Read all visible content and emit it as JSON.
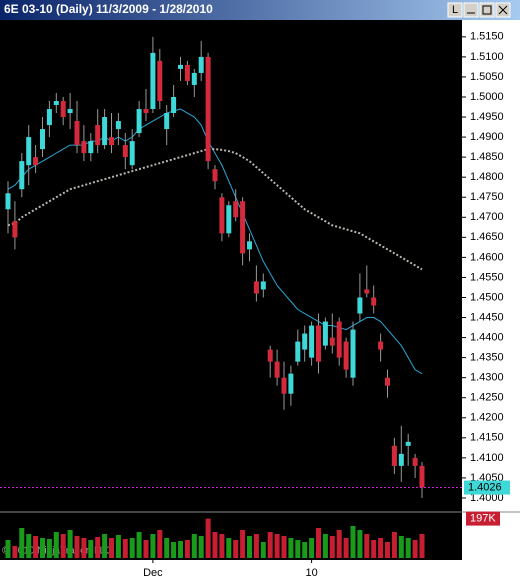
{
  "window_title": "6E 03-10 (Daily)  11/3/2009 - 1/28/2010",
  "window_buttons": [
    "L"
  ],
  "chart_data": {
    "type": "candlestick",
    "categories": [
      null,
      null,
      null,
      null,
      null,
      null,
      null,
      null,
      null,
      null,
      null,
      null,
      null,
      null,
      null,
      null,
      null,
      null,
      null,
      null,
      null,
      "Dec",
      null,
      null,
      null,
      null,
      null,
      null,
      null,
      null,
      null,
      null,
      null,
      null,
      null,
      null,
      null,
      null,
      null,
      null,
      null,
      null,
      null,
      null,
      "10",
      null,
      null,
      null,
      null,
      null,
      null,
      null,
      null,
      null,
      null,
      null,
      null,
      null,
      null,
      null,
      null
    ],
    "open": [
      1.472,
      1.469,
      1.477,
      1.483,
      1.485,
      1.487,
      1.493,
      1.498,
      1.499,
      1.496,
      1.494,
      1.489,
      1.486,
      1.493,
      1.488,
      1.49,
      1.492,
      1.488,
      1.483,
      1.491,
      1.497,
      1.497,
      1.509,
      1.492,
      1.496,
      1.507,
      1.508,
      1.503,
      1.506,
      1.51,
      1.482,
      1.475,
      1.466,
      1.474,
      1.474,
      1.462,
      1.454,
      1.452,
      1.437,
      1.434,
      1.43,
      1.426,
      1.434,
      1.437,
      1.435,
      1.443,
      1.438,
      1.44,
      1.444,
      1.439,
      1.43,
      1.446,
      1.452,
      1.45,
      1.439,
      1.43,
      1.413,
      1.408,
      1.413,
      1.41,
      1.408
    ],
    "high": [
      1.479,
      1.474,
      1.486,
      1.493,
      1.488,
      1.495,
      1.499,
      1.501,
      1.5,
      1.501,
      1.499,
      1.493,
      1.491,
      1.497,
      1.497,
      1.496,
      1.496,
      1.491,
      1.492,
      1.499,
      1.502,
      1.515,
      1.512,
      1.498,
      1.503,
      1.51,
      1.509,
      1.507,
      1.514,
      1.511,
      1.483,
      1.476,
      1.474,
      1.477,
      1.475,
      1.466,
      1.458,
      1.456,
      1.438,
      1.437,
      1.434,
      1.433,
      1.442,
      1.443,
      1.444,
      1.446,
      1.445,
      1.446,
      1.445,
      1.44,
      1.444,
      1.456,
      1.458,
      1.453,
      1.441,
      1.432,
      1.415,
      1.418,
      1.416,
      1.411,
      1.409
    ],
    "low": [
      1.466,
      1.462,
      1.475,
      1.478,
      1.481,
      1.485,
      1.49,
      1.496,
      1.493,
      1.492,
      1.486,
      1.484,
      1.484,
      1.486,
      1.487,
      1.486,
      1.488,
      1.482,
      1.482,
      1.49,
      1.494,
      1.496,
      1.497,
      1.488,
      1.495,
      1.504,
      1.503,
      1.5,
      1.504,
      1.482,
      1.477,
      1.464,
      1.465,
      1.469,
      1.458,
      1.459,
      1.449,
      1.45,
      1.43,
      1.428,
      1.422,
      1.423,
      1.433,
      1.434,
      1.433,
      1.431,
      1.437,
      1.436,
      1.433,
      1.43,
      1.428,
      1.444,
      1.45,
      1.446,
      1.434,
      1.425,
      1.406,
      1.404,
      1.408,
      1.405,
      1.4
    ],
    "close": [
      1.476,
      1.465,
      1.484,
      1.49,
      1.483,
      1.492,
      1.497,
      1.499,
      1.495,
      1.497,
      1.488,
      1.486,
      1.489,
      1.488,
      1.495,
      1.488,
      1.494,
      1.485,
      1.489,
      1.497,
      1.496,
      1.511,
      1.499,
      1.496,
      1.5,
      1.508,
      1.504,
      1.506,
      1.51,
      1.484,
      1.479,
      1.466,
      1.473,
      1.47,
      1.461,
      1.464,
      1.451,
      1.454,
      1.434,
      1.43,
      1.426,
      1.431,
      1.439,
      1.441,
      1.443,
      1.434,
      1.444,
      1.438,
      1.435,
      1.432,
      1.442,
      1.45,
      1.451,
      1.448,
      1.437,
      1.428,
      1.408,
      1.411,
      1.414,
      1.408,
      1.4026
    ],
    "up_color": "#3fd8d8",
    "down_color": "#d42a3c",
    "series": [
      {
        "color": "#2aa7d8",
        "dash": false,
        "values": [
          1.477,
          1.478,
          1.48,
          1.482,
          1.483,
          1.484,
          1.485,
          1.486,
          1.487,
          1.488,
          1.488,
          1.488,
          1.489,
          1.489,
          1.49,
          1.489,
          1.49,
          1.489,
          1.49,
          1.492,
          1.493,
          1.494,
          1.495,
          1.496,
          1.4965,
          1.497,
          1.496,
          1.495,
          1.493,
          1.489,
          1.486,
          1.483,
          1.479,
          1.475,
          1.471,
          1.467,
          1.463,
          1.459,
          1.456,
          1.453,
          1.451,
          1.449,
          1.447,
          1.446,
          1.445,
          1.444,
          1.443,
          1.443,
          1.4425,
          1.442,
          1.443,
          1.444,
          1.445,
          1.445,
          1.444,
          1.442,
          1.44,
          1.438,
          1.435,
          1.432,
          1.431
        ]
      },
      {
        "color": "#b8b8b0",
        "dash": true,
        "values": [
          1.468,
          1.4685,
          1.47,
          1.471,
          1.472,
          1.473,
          1.474,
          1.475,
          1.476,
          1.477,
          1.4775,
          1.478,
          1.4785,
          1.479,
          1.4795,
          1.48,
          1.4805,
          1.481,
          1.4815,
          1.482,
          1.4825,
          1.483,
          1.4835,
          1.484,
          1.4845,
          1.485,
          1.4855,
          1.486,
          1.4865,
          1.487,
          1.487,
          1.4868,
          1.4865,
          1.486,
          1.485,
          1.484,
          1.4825,
          1.481,
          1.4795,
          1.478,
          1.4765,
          1.475,
          1.4735,
          1.472,
          1.471,
          1.47,
          1.469,
          1.468,
          1.4675,
          1.467,
          1.4665,
          1.466,
          1.465,
          1.464,
          1.463,
          1.462,
          1.461,
          1.46,
          1.459,
          1.458,
          1.457
        ]
      }
    ],
    "ylim": [
      1.397,
      1.5192
    ],
    "yticks": [
      {
        "value": 1.515,
        "label": "1.5150"
      },
      {
        "value": 1.51,
        "label": "1.5100"
      },
      {
        "value": 1.505,
        "label": "1.5050"
      },
      {
        "value": 1.5,
        "label": "1.5000"
      },
      {
        "value": 1.495,
        "label": "1.4950"
      },
      {
        "value": 1.49,
        "label": "1.4900"
      },
      {
        "value": 1.485,
        "label": "1.4850"
      },
      {
        "value": 1.48,
        "label": "1.4800"
      },
      {
        "value": 1.475,
        "label": "1.4750"
      },
      {
        "value": 1.47,
        "label": "1.4700"
      },
      {
        "value": 1.465,
        "label": "1.4650"
      },
      {
        "value": 1.46,
        "label": "1.4600"
      },
      {
        "value": 1.455,
        "label": "1.4550"
      },
      {
        "value": 1.45,
        "label": "1.4500"
      },
      {
        "value": 1.445,
        "label": "1.4450"
      },
      {
        "value": 1.44,
        "label": "1.4400"
      },
      {
        "value": 1.435,
        "label": "1.4350"
      },
      {
        "value": 1.43,
        "label": "1.4300"
      },
      {
        "value": 1.425,
        "label": "1.4250"
      },
      {
        "value": 1.42,
        "label": "1.4200"
      },
      {
        "value": 1.415,
        "label": "1.4150"
      },
      {
        "value": 1.41,
        "label": "1.4100"
      },
      {
        "value": 1.405,
        "label": "1.4050"
      },
      {
        "value": 1.4,
        "label": "1.4000"
      }
    ],
    "last_price": 1.4026,
    "last_color": "#d020d0",
    "volume": [
      90000,
      60000,
      150000,
      120000,
      110000,
      100000,
      95000,
      130000,
      120000,
      140000,
      110000,
      100000,
      90000,
      105000,
      120000,
      100000,
      115000,
      95000,
      100000,
      130000,
      90000,
      120000,
      140000,
      100000,
      80000,
      85000,
      90000,
      120000,
      110000,
      197000,
      130000,
      120000,
      100000,
      90000,
      140000,
      110000,
      120000,
      80000,
      130000,
      120000,
      110000,
      100000,
      90000,
      80000,
      100000,
      150000,
      120000,
      110000,
      140000,
      100000,
      160000,
      140000,
      120000,
      90000,
      100000,
      80000,
      130000,
      110000,
      100000,
      90000,
      120000
    ],
    "volume_up_color": "#1a9a1a",
    "volume_down_color": "#c81e32",
    "vlim": [
      0,
      220000
    ],
    "vticks": [
      {
        "value": 197000,
        "label": "197K"
      }
    ],
    "copyright": "© 2010 NinjaTrader, LLC"
  }
}
